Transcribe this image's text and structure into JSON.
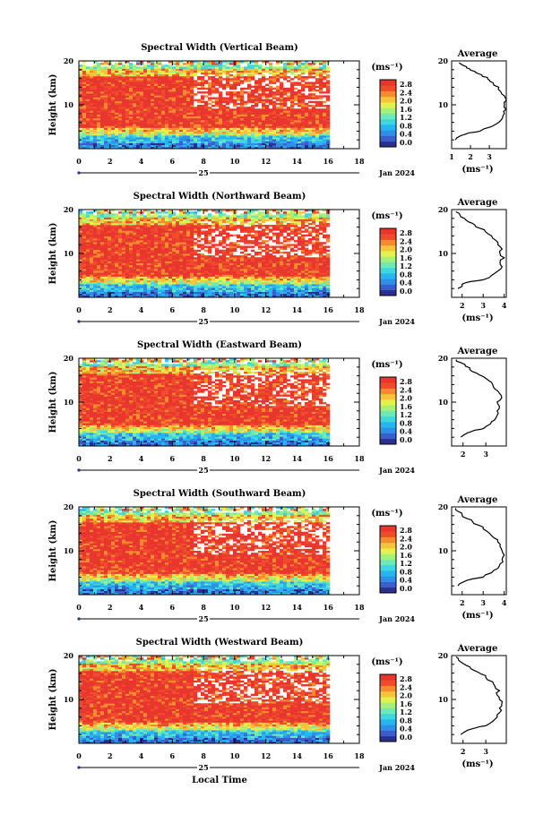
{
  "chart_data": [
    {
      "type": "heatmap",
      "title": "Spectral Width (Vertical Beam)",
      "ylabel": "Height (km)",
      "xlim": [
        0,
        18
      ],
      "ylim": [
        0,
        20
      ],
      "x_ticks": [
        "0",
        "2",
        "4",
        "6",
        "8",
        "10",
        "12",
        "14",
        "16",
        "18"
      ],
      "y_ticks": [
        "10",
        "20"
      ],
      "date_label": "25",
      "month_label": "Jan 2024",
      "colorbar": {
        "unit": "(ms⁻¹)",
        "ticks": [
          "2.8",
          "2.4",
          "2.0",
          "1.6",
          "1.2",
          "0.8",
          "0.4",
          "0.0"
        ]
      },
      "average": {
        "title": "Average",
        "unit": "(ms⁻¹)",
        "x_ticks": [
          "1",
          "2",
          "3"
        ],
        "y_ticks": [
          "10",
          "20"
        ],
        "xlim": [
          1,
          3.9
        ],
        "profile": [
          [
            1.2,
            2
          ],
          [
            1.5,
            3
          ],
          [
            1.9,
            3.6
          ],
          [
            2.5,
            4
          ],
          [
            3.1,
            5
          ],
          [
            3.5,
            6
          ],
          [
            3.7,
            7
          ],
          [
            3.8,
            8
          ],
          [
            3.9,
            9
          ],
          [
            3.8,
            10
          ],
          [
            3.9,
            11
          ],
          [
            3.8,
            12
          ],
          [
            3.6,
            13
          ],
          [
            3.5,
            14
          ],
          [
            3.2,
            15
          ],
          [
            3.0,
            15.6
          ],
          [
            2.9,
            16.2
          ],
          [
            2.6,
            16.8
          ],
          [
            2.3,
            17.3
          ],
          [
            2.0,
            17.9
          ],
          [
            1.8,
            18.4
          ],
          [
            1.6,
            19
          ],
          [
            1.4,
            19.6
          ]
        ]
      }
    },
    {
      "type": "heatmap",
      "title": "Spectral Width (Northward Beam)",
      "ylabel": "Height (km)",
      "xlim": [
        0,
        18
      ],
      "ylim": [
        0,
        20
      ],
      "x_ticks": [
        "0",
        "2",
        "4",
        "6",
        "8",
        "10",
        "12",
        "14",
        "16",
        "18"
      ],
      "y_ticks": [
        "10",
        "20"
      ],
      "date_label": "25",
      "month_label": "Jan 2024",
      "colorbar": {
        "unit": "(ms⁻¹)",
        "ticks": [
          "2.8",
          "2.4",
          "2.0",
          "1.6",
          "1.2",
          "0.8",
          "0.4",
          "0.0"
        ]
      },
      "average": {
        "title": "Average",
        "unit": "(ms⁻¹)",
        "x_ticks": [
          "2",
          "3",
          "4"
        ],
        "y_ticks": [
          "10",
          "20"
        ],
        "xlim": [
          1.5,
          4.1
        ],
        "profile": [
          [
            1.8,
            2
          ],
          [
            2.0,
            3
          ],
          [
            2.4,
            3.6
          ],
          [
            3.0,
            4
          ],
          [
            3.4,
            5
          ],
          [
            3.7,
            6
          ],
          [
            3.9,
            7
          ],
          [
            3.8,
            8
          ],
          [
            4.0,
            9
          ],
          [
            3.8,
            10
          ],
          [
            3.9,
            11
          ],
          [
            3.7,
            12
          ],
          [
            3.6,
            13
          ],
          [
            3.4,
            14
          ],
          [
            3.1,
            15
          ],
          [
            2.8,
            15.8
          ],
          [
            2.6,
            16.5
          ],
          [
            2.3,
            17.2
          ],
          [
            2.1,
            18
          ],
          [
            1.9,
            18.7
          ],
          [
            1.7,
            19.5
          ]
        ]
      }
    },
    {
      "type": "heatmap",
      "title": "Spectral Width (Eastward Beam)",
      "ylabel": "Height (km)",
      "xlim": [
        0,
        18
      ],
      "ylim": [
        0,
        20
      ],
      "x_ticks": [
        "0",
        "2",
        "4",
        "6",
        "8",
        "10",
        "12",
        "14",
        "16",
        "18"
      ],
      "y_ticks": [
        "10",
        "20"
      ],
      "date_label": "25",
      "month_label": "Jan 2024",
      "colorbar": {
        "unit": "(ms⁻¹)",
        "ticks": [
          "2.8",
          "2.4",
          "2.0",
          "1.6",
          "1.2",
          "0.8",
          "0.4",
          "0.0"
        ]
      },
      "average": {
        "title": "Average",
        "unit": "",
        "x_ticks": [
          "2",
          "3"
        ],
        "y_ticks": [
          "10",
          "20"
        ],
        "xlim": [
          1.5,
          3.9
        ],
        "profile": [
          [
            1.9,
            2
          ],
          [
            2.2,
            3
          ],
          [
            2.5,
            3.6
          ],
          [
            2.9,
            4
          ],
          [
            3.2,
            5
          ],
          [
            3.4,
            6
          ],
          [
            3.5,
            7
          ],
          [
            3.5,
            8
          ],
          [
            3.6,
            9
          ],
          [
            3.5,
            10
          ],
          [
            3.7,
            11
          ],
          [
            3.6,
            12
          ],
          [
            3.4,
            13
          ],
          [
            3.3,
            14
          ],
          [
            3.1,
            15
          ],
          [
            2.9,
            15.8
          ],
          [
            2.6,
            16.6
          ],
          [
            2.3,
            17.4
          ],
          [
            2.1,
            18.2
          ],
          [
            1.9,
            19
          ],
          [
            1.7,
            19.7
          ]
        ]
      }
    },
    {
      "type": "heatmap",
      "title": "Spectral Width (Southward Beam)",
      "ylabel": "Height (km)",
      "xlim": [
        0,
        18
      ],
      "ylim": [
        0,
        20
      ],
      "x_ticks": [
        "0",
        "2",
        "4",
        "6",
        "8",
        "10",
        "12",
        "14",
        "16",
        "18"
      ],
      "y_ticks": [
        "10",
        "20"
      ],
      "date_label": "25",
      "month_label": "Jan 2024",
      "colorbar": {
        "unit": "(ms⁻¹)",
        "ticks": [
          "2.8",
          "2.4",
          "2.0",
          "1.6",
          "1.2",
          "0.8",
          "0.4",
          "0.0"
        ]
      },
      "average": {
        "title": "Average",
        "unit": "(ms⁻¹)",
        "x_ticks": [
          "2",
          "3",
          "4"
        ],
        "y_ticks": [
          "10",
          "20"
        ],
        "xlim": [
          1.5,
          4.1
        ],
        "profile": [
          [
            1.8,
            2
          ],
          [
            2.1,
            3
          ],
          [
            2.5,
            3.6
          ],
          [
            3.0,
            4
          ],
          [
            3.4,
            5
          ],
          [
            3.7,
            6
          ],
          [
            3.8,
            7
          ],
          [
            3.9,
            8
          ],
          [
            4.0,
            9
          ],
          [
            3.9,
            10
          ],
          [
            3.8,
            11
          ],
          [
            3.7,
            12
          ],
          [
            3.5,
            13
          ],
          [
            3.3,
            14
          ],
          [
            3.0,
            15
          ],
          [
            2.8,
            15.8
          ],
          [
            2.5,
            16.6
          ],
          [
            2.2,
            17.4
          ],
          [
            2.0,
            18.2
          ],
          [
            1.8,
            19
          ],
          [
            1.7,
            19.7
          ]
        ]
      }
    },
    {
      "type": "heatmap",
      "title": "Spectral Width (Westward Beam)",
      "ylabel": "Height (km)",
      "xlabel": "Local Time",
      "xlim": [
        0,
        18
      ],
      "ylim": [
        0,
        20
      ],
      "x_ticks": [
        "0",
        "2",
        "4",
        "6",
        "8",
        "10",
        "12",
        "14",
        "16",
        "18"
      ],
      "y_ticks": [
        "10",
        "20"
      ],
      "date_label": "25",
      "month_label": "Jan 2024",
      "colorbar": {
        "unit": "(ms⁻¹)",
        "ticks": [
          "2.8",
          "2.4",
          "2.0",
          "1.6",
          "1.2",
          "0.8",
          "0.4",
          "0.0"
        ]
      },
      "average": {
        "title": "Average",
        "unit": "(ms⁻¹)",
        "x_ticks": [
          "2",
          "3"
        ],
        "y_ticks": [
          "10",
          "20"
        ],
        "xlim": [
          1.5,
          3.9
        ],
        "profile": [
          [
            1.9,
            2
          ],
          [
            2.2,
            3
          ],
          [
            2.6,
            3.6
          ],
          [
            3.0,
            4
          ],
          [
            3.3,
            5
          ],
          [
            3.5,
            6
          ],
          [
            3.6,
            7
          ],
          [
            3.6,
            8
          ],
          [
            3.7,
            9
          ],
          [
            3.6,
            10
          ],
          [
            3.5,
            11
          ],
          [
            3.6,
            12
          ],
          [
            3.4,
            13
          ],
          [
            3.3,
            14
          ],
          [
            3.0,
            15
          ],
          [
            2.8,
            15.8
          ],
          [
            2.5,
            16.6
          ],
          [
            2.3,
            17.4
          ],
          [
            2.0,
            18.2
          ],
          [
            1.8,
            19
          ],
          [
            1.7,
            19.7
          ]
        ]
      }
    }
  ],
  "colorscale": [
    "#2b2f8f",
    "#3a5fcd",
    "#2f8fe6",
    "#27b5f0",
    "#3fd6e0",
    "#6ee8b4",
    "#a6f07a",
    "#e4f04c",
    "#f7c33a",
    "#f58a2e",
    "#ef4c2c",
    "#e8362f"
  ]
}
